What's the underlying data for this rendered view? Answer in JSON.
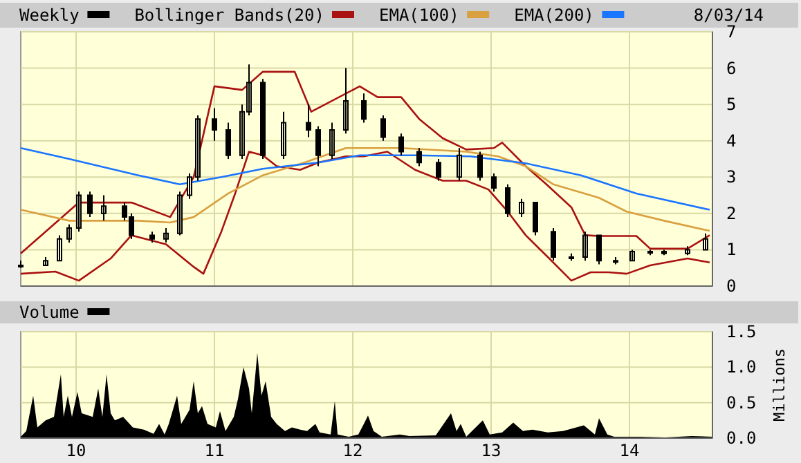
{
  "chart_data": [
    {
      "type": "candlestick",
      "legend": "top",
      "grid": true,
      "tick_labels": "y",
      "annotations": [
        "8/03/14"
      ],
      "xlim": [
        2009.6,
        2014.6
      ],
      "xticks": [
        2010,
        2011,
        2012,
        2013,
        2014
      ],
      "ylim": [
        0,
        7
      ],
      "yticks": [
        0,
        1,
        2,
        3,
        4,
        5,
        6,
        7
      ],
      "series": [
        {
          "name": "Bollinger Bands(20)",
          "type": "line",
          "color": "#aa1111",
          "x": [
            2009.6,
            2010.02,
            2010.4,
            2010.68,
            2010.85,
            2011.0,
            2011.2,
            2011.35,
            2011.58,
            2011.7,
            2012.05,
            2012.18,
            2012.35,
            2012.48,
            2012.65,
            2012.82,
            2013.02,
            2013.08,
            2013.25,
            2013.4,
            2013.58,
            2013.68,
            2013.78,
            2014.05,
            2014.15,
            2014.42,
            2014.58
          ],
          "values": [
            0.9,
            2.3,
            2.3,
            1.9,
            3.0,
            5.5,
            5.4,
            5.9,
            5.9,
            4.8,
            5.5,
            5.2,
            5.2,
            4.6,
            4.07,
            3.76,
            3.8,
            3.95,
            3.3,
            2.8,
            2.17,
            1.4,
            1.38,
            1.38,
            1.03,
            1.03,
            1.4
          ]
        },
        {
          "type": "line",
          "color": "#aa1111",
          "x": [
            2009.6,
            2009.85,
            2010.02,
            2010.25,
            2010.4,
            2010.65,
            2010.85,
            2010.92,
            2011.05,
            2011.15,
            2011.25,
            2011.35,
            2011.45,
            2011.62,
            2011.75,
            2011.95,
            2012.08,
            2012.25,
            2012.45,
            2012.65,
            2012.82,
            2012.98,
            2013.12,
            2013.25,
            2013.42,
            2013.58,
            2013.72,
            2013.85,
            2013.98,
            2014.15,
            2014.42,
            2014.58
          ],
          "values": [
            0.34,
            0.4,
            0.15,
            0.76,
            1.4,
            1.15,
            0.53,
            0.34,
            1.5,
            2.55,
            3.7,
            3.6,
            3.3,
            3.2,
            3.4,
            3.57,
            3.57,
            3.7,
            3.2,
            2.9,
            2.9,
            2.66,
            2.05,
            1.4,
            0.76,
            0.15,
            0.38,
            0.38,
            0.34,
            0.57,
            0.76,
            0.65
          ]
        },
        {
          "name": "EMA(100)",
          "type": "line",
          "color": "#d9a040",
          "x": [
            2009.6,
            2009.95,
            2010.45,
            2010.68,
            2010.85,
            2011.1,
            2011.35,
            2011.65,
            2011.95,
            2012.35,
            2012.82,
            2013.05,
            2013.25,
            2013.45,
            2013.78,
            2013.98,
            2014.25,
            2014.58
          ],
          "values": [
            2.1,
            1.8,
            1.8,
            1.75,
            1.9,
            2.55,
            3.05,
            3.4,
            3.8,
            3.8,
            3.7,
            3.57,
            3.3,
            2.8,
            2.43,
            2.05,
            1.8,
            1.52
          ]
        },
        {
          "name": "EMA(200)",
          "type": "line",
          "color": "#1a75ff",
          "x": [
            2009.6,
            2009.95,
            2010.45,
            2010.75,
            2011.05,
            2011.35,
            2011.75,
            2012.05,
            2012.45,
            2012.85,
            2013.25,
            2013.65,
            2014.05,
            2014.58
          ],
          "values": [
            3.8,
            3.5,
            3.05,
            2.8,
            3.0,
            3.23,
            3.4,
            3.6,
            3.6,
            3.57,
            3.38,
            3.05,
            2.55,
            2.1
          ]
        },
        {
          "name": "Weekly",
          "color": "#000000",
          "x": [
            2009.6,
            2009.78,
            2009.88,
            2009.95,
            2010.02,
            2010.1,
            2010.2,
            2010.35,
            2010.4,
            2010.55,
            2010.65,
            2010.75,
            2010.82,
            2010.88,
            2011.0,
            2011.1,
            2011.2,
            2011.25,
            2011.35,
            2011.5,
            2011.68,
            2011.75,
            2011.85,
            2011.95,
            2012.08,
            2012.22,
            2012.35,
            2012.48,
            2012.62,
            2012.77,
            2012.92,
            2013.02,
            2013.12,
            2013.22,
            2013.32,
            2013.45,
            2013.58,
            2013.68,
            2013.78,
            2013.9,
            2014.02,
            2014.15,
            2014.25,
            2014.42,
            2014.55
          ],
          "ohlc": [
            [
              0.55,
              0.7,
              0.5,
              0.57
            ],
            [
              0.57,
              0.8,
              0.55,
              0.7
            ],
            [
              0.7,
              1.4,
              0.7,
              1.3
            ],
            [
              1.3,
              1.7,
              1.2,
              1.6
            ],
            [
              1.6,
              2.6,
              1.5,
              2.5
            ],
            [
              2.5,
              2.6,
              1.9,
              2.0
            ],
            [
              2.0,
              2.5,
              1.8,
              2.2
            ],
            [
              2.2,
              2.3,
              1.8,
              1.9
            ],
            [
              1.9,
              2.0,
              1.3,
              1.4
            ],
            [
              1.4,
              1.5,
              1.2,
              1.3
            ],
            [
              1.3,
              1.6,
              1.2,
              1.45
            ],
            [
              1.45,
              2.6,
              1.4,
              2.5
            ],
            [
              2.5,
              3.1,
              2.4,
              3.0
            ],
            [
              3.0,
              4.7,
              2.9,
              4.6
            ],
            [
              4.6,
              4.9,
              4.0,
              4.3
            ],
            [
              4.3,
              4.5,
              3.5,
              3.6
            ],
            [
              3.6,
              5.0,
              3.5,
              4.8
            ],
            [
              4.8,
              6.1,
              4.7,
              5.6
            ],
            [
              5.6,
              5.7,
              3.5,
              3.6
            ],
            [
              3.6,
              4.8,
              3.5,
              4.5
            ],
            [
              4.5,
              5.0,
              4.1,
              4.3
            ],
            [
              4.3,
              4.4,
              3.3,
              3.6
            ],
            [
              3.6,
              4.5,
              3.5,
              4.3
            ],
            [
              4.3,
              6.0,
              4.2,
              5.1
            ],
            [
              5.1,
              5.3,
              4.5,
              4.6
            ],
            [
              4.6,
              4.7,
              4.0,
              4.1
            ],
            [
              4.1,
              4.2,
              3.6,
              3.7
            ],
            [
              3.7,
              3.8,
              3.3,
              3.4
            ],
            [
              3.4,
              3.5,
              2.9,
              3.0
            ],
            [
              3.0,
              3.8,
              2.9,
              3.6
            ],
            [
              3.6,
              3.7,
              2.9,
              3.0
            ],
            [
              3.0,
              3.1,
              2.6,
              2.7
            ],
            [
              2.7,
              2.8,
              1.9,
              2.0
            ],
            [
              2.0,
              2.4,
              1.9,
              2.3
            ],
            [
              2.3,
              2.3,
              1.4,
              1.5
            ],
            [
              1.5,
              1.6,
              0.7,
              0.8
            ],
            [
              0.8,
              0.9,
              0.7,
              0.8
            ],
            [
              0.8,
              1.5,
              0.7,
              1.4
            ],
            [
              1.4,
              1.4,
              0.6,
              0.7
            ],
            [
              0.7,
              0.8,
              0.6,
              0.7
            ],
            [
              0.7,
              1.0,
              0.7,
              0.95
            ],
            [
              0.95,
              1.0,
              0.85,
              0.95
            ],
            [
              0.95,
              1.0,
              0.85,
              0.9
            ],
            [
              0.9,
              1.1,
              0.85,
              1.0
            ],
            [
              1.0,
              1.45,
              1.0,
              1.3
            ]
          ]
        }
      ]
    },
    {
      "type": "area",
      "legend": "top",
      "grid": true,
      "ylabel": "Millions",
      "xlim": [
        2009.6,
        2014.6
      ],
      "xticks": [
        {
          "value": 2010,
          "label": "10"
        },
        {
          "value": 2011,
          "label": "11"
        },
        {
          "value": 2012,
          "label": "12"
        },
        {
          "value": 2013,
          "label": "13"
        },
        {
          "value": 2014,
          "label": "14"
        }
      ],
      "ylim": [
        0,
        1.5
      ],
      "yticks": [
        {
          "value": 0,
          "label": "0.0"
        },
        {
          "value": 0.5,
          "label": "0.5"
        },
        {
          "value": 1,
          "label": "1.0"
        },
        {
          "value": 1.5,
          "label": "1.5"
        }
      ],
      "series": [
        {
          "name": "Volume",
          "color": "#000000",
          "x": [
            2009.6,
            2009.64,
            2009.69,
            2009.72,
            2009.78,
            2009.84,
            2009.89,
            2009.91,
            2009.94,
            2009.97,
            2010.01,
            2010.04,
            2010.12,
            2010.16,
            2010.19,
            2010.22,
            2010.25,
            2010.28,
            2010.34,
            2010.41,
            2010.49,
            2010.56,
            2010.6,
            2010.64,
            2010.67,
            2010.73,
            2010.76,
            2010.82,
            2010.85,
            2010.88,
            2010.91,
            2010.95,
            2011.01,
            2011.04,
            2011.08,
            2011.14,
            2011.17,
            2011.21,
            2011.25,
            2011.27,
            2011.31,
            2011.34,
            2011.37,
            2011.41,
            2011.45,
            2011.51,
            2011.56,
            2011.62,
            2011.67,
            2011.73,
            2011.76,
            2011.84,
            2011.87,
            2011.89,
            2011.97,
            2012.04,
            2012.08,
            2012.11,
            2012.15,
            2012.21,
            2012.34,
            2012.41,
            2012.6,
            2012.71,
            2012.75,
            2012.78,
            2012.82,
            2012.94,
            2012.99,
            2013.08,
            2013.16,
            2013.23,
            2013.3,
            2013.41,
            2013.52,
            2013.67,
            2013.75,
            2013.78,
            2013.84,
            2013.89,
            2014.08,
            2014.26,
            2014.45,
            2014.6
          ],
          "values": [
            0.02,
            0.1,
            0.6,
            0.15,
            0.25,
            0.3,
            0.9,
            0.3,
            0.6,
            0.3,
            0.65,
            0.35,
            0.3,
            0.7,
            0.3,
            0.9,
            0.35,
            0.25,
            0.3,
            0.15,
            0.12,
            0.06,
            0.2,
            0.05,
            0.2,
            0.6,
            0.2,
            0.4,
            0.8,
            0.35,
            0.45,
            0.2,
            0.15,
            0.38,
            0.1,
            0.3,
            0.55,
            1.0,
            0.7,
            0.35,
            1.2,
            0.6,
            0.8,
            0.3,
            0.2,
            0.1,
            0.15,
            0.12,
            0.1,
            0.2,
            0.08,
            0.05,
            0.52,
            0.05,
            0.02,
            0.05,
            0.2,
            0.32,
            0.1,
            0.02,
            0.05,
            0.03,
            0.04,
            0.35,
            0.1,
            0.2,
            0.02,
            0.25,
            0.05,
            0.08,
            0.22,
            0.1,
            0.12,
            0.08,
            0.1,
            0.18,
            0.05,
            0.28,
            0.05,
            0.02,
            0.02,
            0.01,
            0.03,
            0.02
          ]
        }
      ]
    }
  ]
}
